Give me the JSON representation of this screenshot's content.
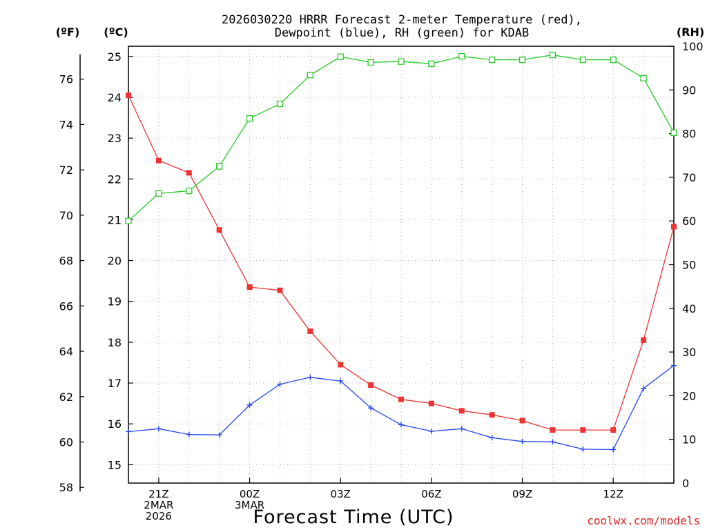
{
  "chart_data": {
    "type": "line",
    "title_line1": "2026030220 HRRR Forecast 2-meter Temperature (red),",
    "title_line2": "Dewpoint (blue), RH (green) for KDAB",
    "xlabel": "Forecast Time (UTC)",
    "credit": "coolwx.com/models",
    "units": {
      "fahrenheit": "(ºF)",
      "celsius": "(ºC)",
      "rh": "(RH)"
    },
    "x_hours": [
      20,
      21,
      22,
      23,
      0,
      1,
      2,
      3,
      4,
      5,
      6,
      7,
      8,
      9,
      10,
      11,
      12,
      13,
      14
    ],
    "x_ticks": [
      {
        "index": 1,
        "lines": [
          "21Z",
          "2MAR",
          "2026"
        ]
      },
      {
        "index": 4,
        "lines": [
          "00Z",
          "3MAR"
        ]
      },
      {
        "index": 7,
        "lines": [
          "03Z"
        ]
      },
      {
        "index": 10,
        "lines": [
          "06Z"
        ]
      },
      {
        "index": 13,
        "lines": [
          "09Z"
        ]
      },
      {
        "index": 16,
        "lines": [
          "12Z"
        ]
      }
    ],
    "ylim_c": [
      14.55,
      25.25
    ],
    "yticks_c": [
      "15",
      "16",
      "17",
      "18",
      "19",
      "20",
      "21",
      "22",
      "23",
      "24",
      "25"
    ],
    "yticks_f": [
      "58",
      "60",
      "62",
      "64",
      "66",
      "68",
      "70",
      "72",
      "74",
      "76"
    ],
    "ylim_rh": [
      0,
      100
    ],
    "yticks_rh": [
      "0",
      "10",
      "20",
      "30",
      "40",
      "50",
      "60",
      "70",
      "80",
      "90",
      "100"
    ],
    "series": [
      {
        "name": "Temperature",
        "axis": "celsius",
        "color": "#ee3333",
        "marker": "filled-square",
        "values": [
          24.05,
          22.45,
          22.15,
          20.75,
          19.35,
          19.27,
          18.27,
          17.45,
          16.95,
          16.6,
          16.5,
          16.32,
          16.22,
          16.08,
          15.85,
          15.85,
          15.85,
          18.05,
          20.83
        ]
      },
      {
        "name": "Dewpoint",
        "axis": "celsius",
        "color": "#2244ee",
        "marker": "plus",
        "values": [
          15.81,
          15.88,
          15.74,
          15.73,
          16.46,
          16.97,
          17.14,
          17.05,
          16.39,
          15.98,
          15.82,
          15.88,
          15.66,
          15.57,
          15.56,
          15.38,
          15.37,
          16.87,
          17.43
        ]
      },
      {
        "name": "RH",
        "axis": "rh",
        "color": "#22cc22",
        "marker": "open-square",
        "values": [
          60,
          66.3,
          66.9,
          72.5,
          83.5,
          86.8,
          93.4,
          97.6,
          96.3,
          96.5,
          96.0,
          97.7,
          96.9,
          96.9,
          98.0,
          96.9,
          96.9,
          92.7,
          80.2
        ]
      }
    ]
  }
}
